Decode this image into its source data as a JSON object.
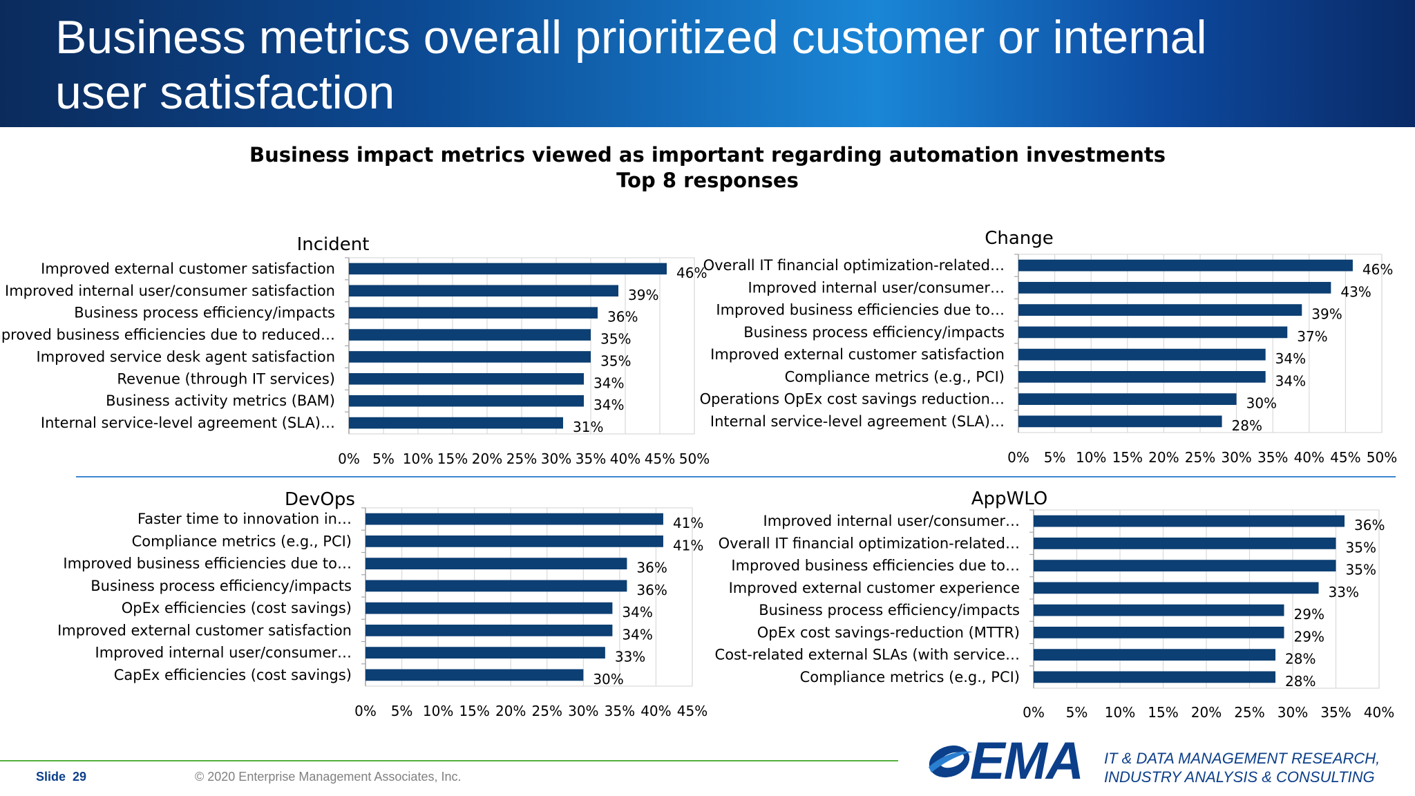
{
  "slide": {
    "title": "Business metrics overall prioritized customer or internal user satisfaction",
    "chart_heading_line1": "Business impact metrics viewed as important regarding automation investments",
    "chart_heading_line2": "Top 8 responses",
    "footer_slide_label": "Slide",
    "footer_slide_number": "29",
    "footer_copyright": "© 2020 Enterprise Management Associates, Inc.",
    "logo_text": "EMA",
    "tagline_line1": "IT & DATA MANAGEMENT RESEARCH,",
    "tagline_line2": "INDUSTRY ANALYSIS & CONSULTING",
    "bar_color": "#0c3f73",
    "grid_color": "#d9d9d9"
  },
  "chart_data": [
    {
      "type": "bar",
      "orientation": "horizontal",
      "title": "Incident",
      "categories": [
        "Improved external customer satisfaction",
        "Improved internal user/consumer satisfaction",
        "Business process efficiency/impacts",
        "Improved business efficiencies due to reduced…",
        "Improved service desk agent satisfaction",
        "Revenue (through IT services)",
        "Business activity metrics (BAM)",
        "Internal service-level agreement (SLA)…"
      ],
      "values": [
        46,
        39,
        36,
        35,
        35,
        34,
        34,
        31
      ],
      "value_labels": [
        "46%",
        "39%",
        "36%",
        "35%",
        "35%",
        "34%",
        "34%",
        "31%"
      ],
      "xlim": [
        0,
        50
      ],
      "ticks": [
        0,
        5,
        10,
        15,
        20,
        25,
        30,
        35,
        40,
        45,
        50
      ],
      "tick_labels": [
        "0%",
        "5%",
        "10%",
        "15%",
        "20%",
        "25%",
        "30%",
        "35%",
        "40%",
        "45%",
        "50%"
      ],
      "grid": true
    },
    {
      "type": "bar",
      "orientation": "horizontal",
      "title": "Change",
      "categories": [
        "Overall IT financial optimization-related…",
        "Improved internal user/consumer…",
        "Improved business efficiencies due to…",
        "Business process efficiency/impacts",
        "Improved external customer satisfaction",
        "Compliance metrics (e.g., PCI)",
        "Operations OpEx cost savings reduction…",
        "Internal service-level agreement (SLA)…"
      ],
      "values": [
        46,
        43,
        39,
        37,
        34,
        34,
        30,
        28
      ],
      "value_labels": [
        "46%",
        "43%",
        "39%",
        "37%",
        "34%",
        "34%",
        "30%",
        "28%"
      ],
      "xlim": [
        0,
        50
      ],
      "ticks": [
        0,
        5,
        10,
        15,
        20,
        25,
        30,
        35,
        40,
        45,
        50
      ],
      "tick_labels": [
        "0%",
        "5%",
        "10%",
        "15%",
        "20%",
        "25%",
        "30%",
        "35%",
        "40%",
        "45%",
        "50%"
      ],
      "grid": true
    },
    {
      "type": "bar",
      "orientation": "horizontal",
      "title": "DevOps",
      "categories": [
        "Faster time to innovation in…",
        "Compliance metrics (e.g., PCI)",
        "Improved business efficiencies due to…",
        "Business process efficiency/impacts",
        "OpEx efficiencies (cost savings)",
        "Improved external customer satisfaction",
        "Improved internal user/consumer…",
        "CapEx efficiencies (cost savings)"
      ],
      "values": [
        41,
        41,
        36,
        36,
        34,
        34,
        33,
        30
      ],
      "value_labels": [
        "41%",
        "41%",
        "36%",
        "36%",
        "34%",
        "34%",
        "33%",
        "30%"
      ],
      "xlim": [
        0,
        45
      ],
      "ticks": [
        0,
        5,
        10,
        15,
        20,
        25,
        30,
        35,
        40,
        45
      ],
      "tick_labels": [
        "0%",
        "5%",
        "10%",
        "15%",
        "20%",
        "25%",
        "30%",
        "35%",
        "40%",
        "45%"
      ],
      "grid": true
    },
    {
      "type": "bar",
      "orientation": "horizontal",
      "title": "AppWLO",
      "categories": [
        "Improved internal user/consumer…",
        "Overall IT financial optimization-related…",
        "Improved business efficiencies due to…",
        "Improved external customer experience",
        "Business process efficiency/impacts",
        "OpEx cost savings-reduction (MTTR)",
        "Cost-related external SLAs (with service…",
        "Compliance metrics (e.g., PCI)"
      ],
      "values": [
        36,
        35,
        35,
        33,
        29,
        29,
        28,
        28
      ],
      "value_labels": [
        "36%",
        "35%",
        "35%",
        "33%",
        "29%",
        "29%",
        "28%",
        "28%"
      ],
      "xlim": [
        0,
        40
      ],
      "ticks": [
        0,
        5,
        10,
        15,
        20,
        25,
        30,
        35,
        40
      ],
      "tick_labels": [
        "0%",
        "5%",
        "10%",
        "15%",
        "20%",
        "25%",
        "30%",
        "35%",
        "40%"
      ],
      "grid": true
    }
  ]
}
